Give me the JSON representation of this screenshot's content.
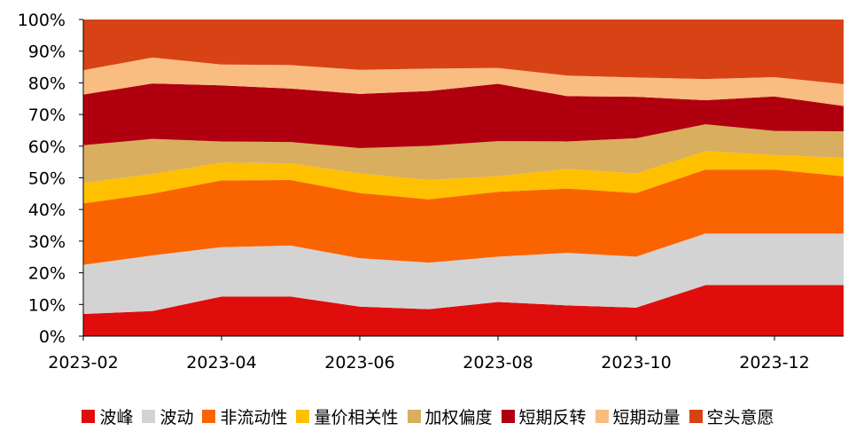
{
  "chart_data": {
    "type": "area",
    "stacked": true,
    "normalized_percent": true,
    "x": [
      "2023-02",
      "2023-03",
      "2023-04",
      "2023-05",
      "2023-06",
      "2023-07",
      "2023-08",
      "2023-09",
      "2023-10",
      "2023-11",
      "2023-12",
      "2024-01"
    ],
    "x_tick_labels": [
      "2023-02",
      "2023-04",
      "2023-06",
      "2023-08",
      "2023-10",
      "2023-12"
    ],
    "y_tick_labels": [
      "0%",
      "10%",
      "20%",
      "30%",
      "40%",
      "50%",
      "60%",
      "70%",
      "80%",
      "90%",
      "100%"
    ],
    "ylim": [
      0,
      100
    ],
    "grid": false,
    "legend_position": "bottom",
    "series": [
      {
        "name": "波峰",
        "color": "#e00d0d",
        "values": [
          7,
          7.9,
          12.5,
          12.5,
          9.3,
          8.5,
          10.8,
          9.7,
          9,
          16.1,
          16.1,
          16.1
        ]
      },
      {
        "name": "波动",
        "color": "#d3d3d3",
        "values": [
          15.5,
          17.6,
          15.6,
          16.1,
          15.3,
          14.7,
          14.3,
          16.6,
          16.1,
          16.3,
          16.3,
          16.3
        ]
      },
      {
        "name": "非流动性",
        "color": "#fa6400",
        "values": [
          19.4,
          19.5,
          21.1,
          20.7,
          20.6,
          20,
          20.5,
          20.3,
          20.1,
          20.2,
          20.2,
          18.1
        ]
      },
      {
        "name": "量价相关性",
        "color": "#ffc000",
        "values": [
          6.5,
          6.2,
          5.6,
          5.3,
          6.2,
          6.1,
          4.9,
          6.2,
          6.2,
          5.8,
          4.6,
          5.8
        ]
      },
      {
        "name": "加权偏度",
        "color": "#d9ae5f",
        "values": [
          11.9,
          11.1,
          6.7,
          6.7,
          8,
          10.8,
          11.1,
          8.7,
          11.1,
          8.5,
          7.6,
          8.4
        ]
      },
      {
        "name": "短期反转",
        "color": "#b0000f",
        "values": [
          16,
          17.5,
          17.7,
          16.9,
          17.1,
          17.3,
          18.1,
          14.3,
          13.1,
          7.6,
          10.9,
          8
        ]
      },
      {
        "name": "短期动量",
        "color": "#f9bd82",
        "values": [
          7.7,
          8.2,
          6.6,
          7.4,
          7.6,
          7.1,
          5,
          6.5,
          6.1,
          6.7,
          6.1,
          6.9
        ]
      },
      {
        "name": "空头意愿",
        "color": "#d84316",
        "values": [
          16,
          12.0,
          14.2,
          14.4,
          15.9,
          15.5,
          15.3,
          17.7,
          18.3,
          18.8,
          18.2,
          20.4
        ]
      }
    ]
  }
}
